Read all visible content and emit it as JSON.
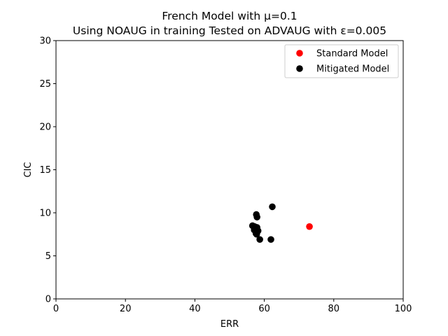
{
  "chart_data": {
    "type": "scatter",
    "title_line1": "French Model with μ=0.1",
    "title_line2": "Using NOAUG in training Tested on ADVAUG with ε=0.005",
    "xlabel": "ERR",
    "ylabel": "CIC",
    "xlim": [
      0,
      100
    ],
    "ylim": [
      0,
      30
    ],
    "xticks": [
      0,
      20,
      40,
      60,
      80,
      100
    ],
    "yticks": [
      0,
      5,
      10,
      15,
      20,
      25,
      30
    ],
    "grid": false,
    "legend_position": "top-right",
    "series": [
      {
        "name": "Standard Model",
        "color": "#ff0000",
        "points": [
          [
            73.0,
            8.4
          ]
        ]
      },
      {
        "name": "Mitigated Model",
        "color": "#000000",
        "points": [
          [
            62.3,
            10.7
          ],
          [
            57.7,
            9.8
          ],
          [
            57.9,
            9.5
          ],
          [
            56.6,
            8.5
          ],
          [
            57.2,
            8.4
          ],
          [
            57.9,
            8.3
          ],
          [
            57.1,
            8.0
          ],
          [
            58.2,
            7.9
          ],
          [
            57.6,
            7.6
          ],
          [
            57.8,
            7.5
          ],
          [
            58.7,
            6.9
          ],
          [
            61.9,
            6.9
          ]
        ]
      }
    ]
  }
}
